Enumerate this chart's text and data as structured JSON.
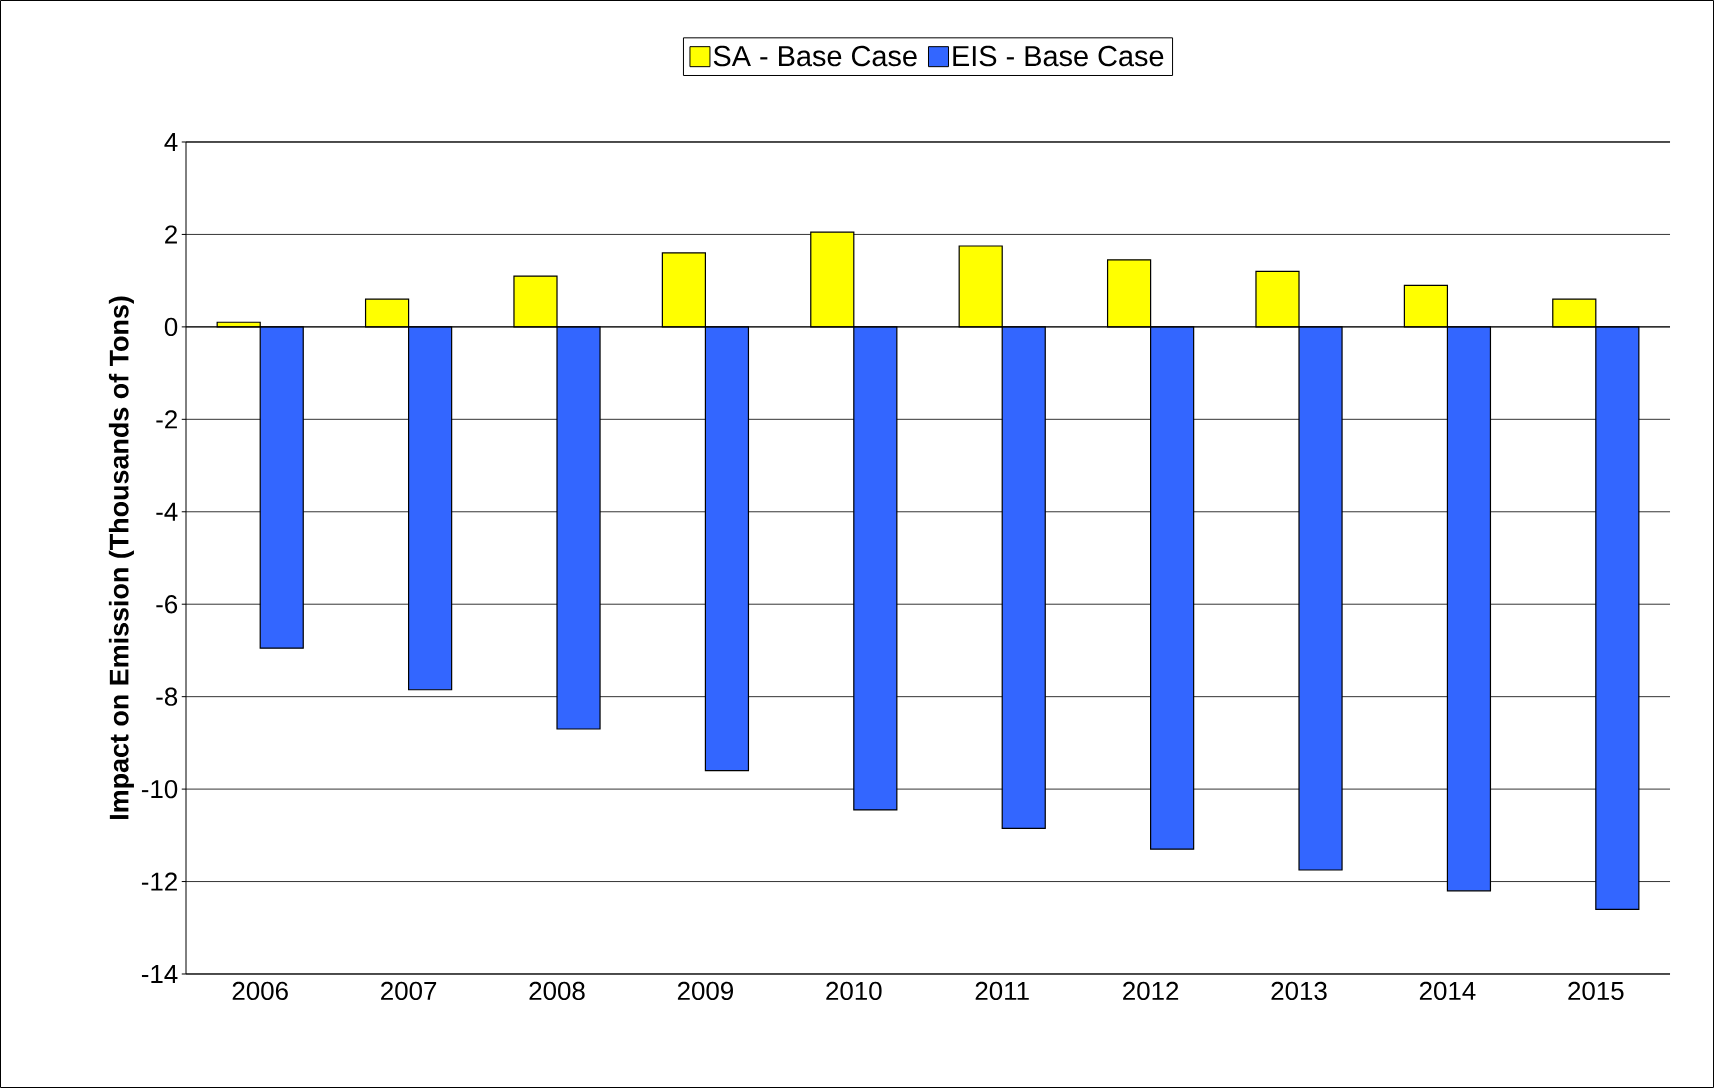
{
  "chart_data": {
    "type": "bar",
    "ylabel": "Impact on Emission (Thousands of Tons)",
    "categories": [
      "2006",
      "2007",
      "2008",
      "2009",
      "2010",
      "2011",
      "2012",
      "2013",
      "2014",
      "2015"
    ],
    "series": [
      {
        "name": "SA - Base Case",
        "color": "#ffff00",
        "values": [
          0.1,
          0.6,
          1.1,
          1.6,
          2.05,
          1.75,
          1.45,
          1.2,
          0.9,
          0.6
        ]
      },
      {
        "name": "EIS - Base Case",
        "color": "#3366ff",
        "values": [
          -6.95,
          -7.85,
          -8.7,
          -9.6,
          -10.45,
          -10.85,
          -11.3,
          -11.75,
          -12.2,
          -12.6
        ]
      }
    ],
    "ylim": [
      -14,
      4
    ],
    "yticks": [
      -14,
      -12,
      -10,
      -8,
      -6,
      -4,
      -2,
      0,
      2,
      4
    ],
    "grid": "y",
    "legend": "top"
  }
}
